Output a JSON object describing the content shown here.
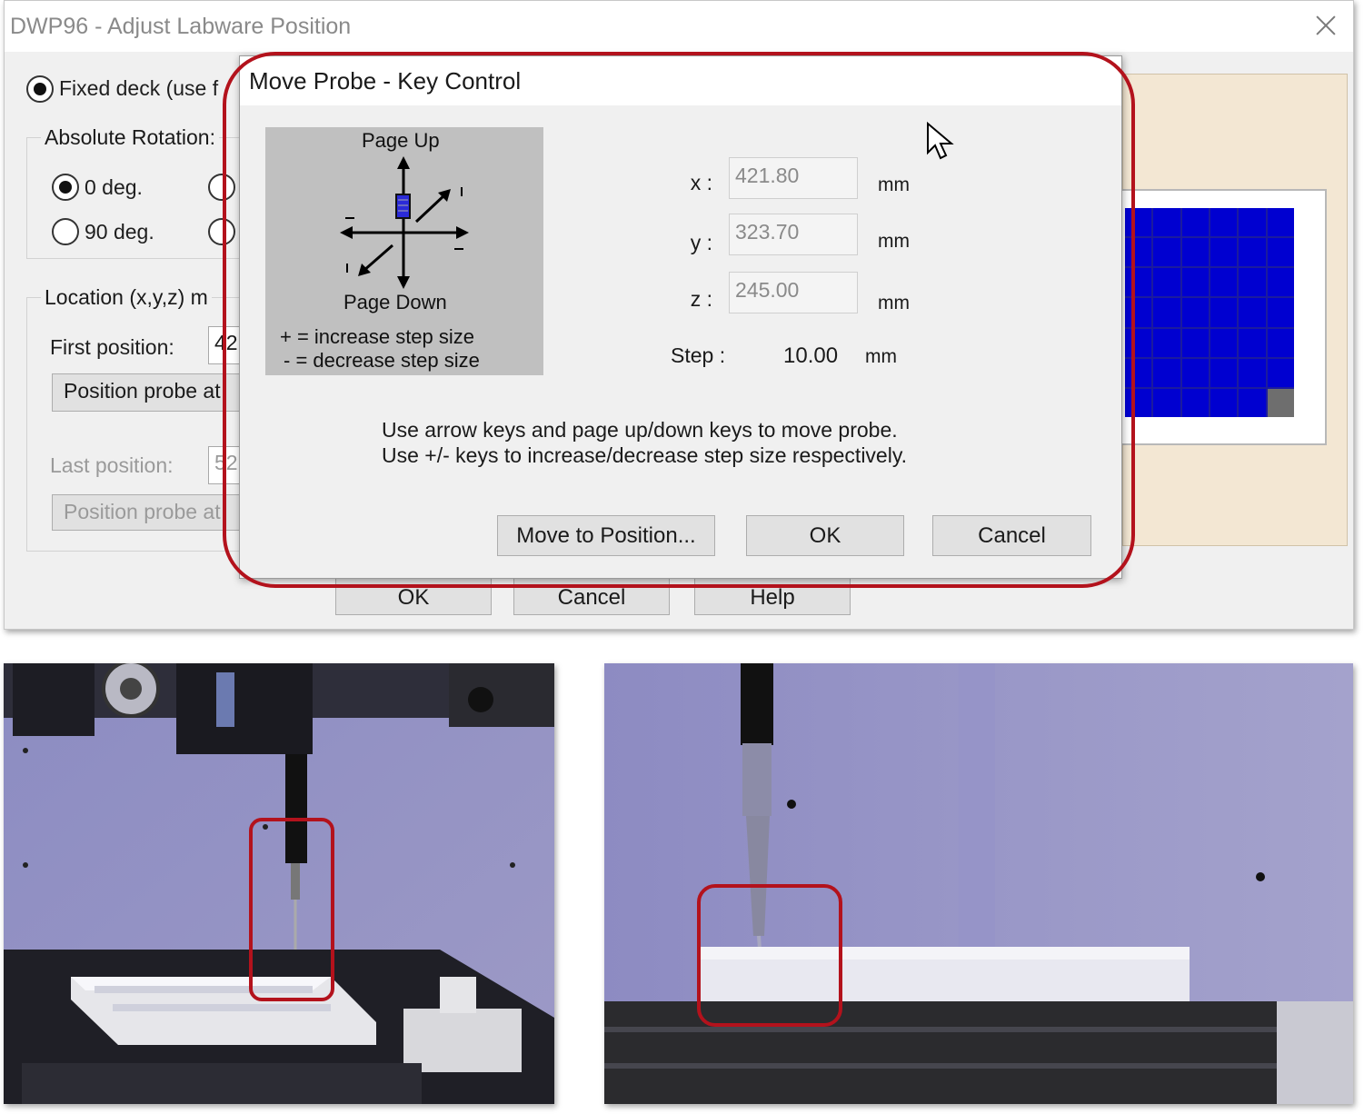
{
  "parent_window": {
    "title": "DWP96 - Adjust Labware Position",
    "fixed_deck_label": "Fixed deck (use f",
    "absolute_rotation_label": "Absolute Rotation:",
    "rotation_options": [
      "0 deg.",
      "90 deg."
    ],
    "location_label": "Location (x,y,z) m",
    "first_position_label": "First position:",
    "first_position_value": "42",
    "position_probe_button_1": "Position probe at",
    "last_position_label": "Last position:",
    "last_position_value": "52",
    "position_probe_button_2": "Position probe at",
    "buttons": {
      "ok": "OK",
      "cancel": "Cancel",
      "help": "Help"
    }
  },
  "dialog": {
    "title": "Move Probe - Key Control",
    "keypad": {
      "page_up": "Page Up",
      "page_down": "Page Down",
      "increase_hint": "+ = increase step size",
      "decrease_hint": "- = decrease step size"
    },
    "coordinates": [
      {
        "label": "x :",
        "value": "421.80",
        "unit": "mm"
      },
      {
        "label": "y :",
        "value": "323.70",
        "unit": "mm"
      },
      {
        "label": "z :",
        "value": "245.00",
        "unit": "mm"
      }
    ],
    "step": {
      "label": "Step :",
      "value": "10.00",
      "unit": "mm"
    },
    "instructions": [
      "Use arrow keys and page up/down keys to move probe.",
      "Use +/- keys to increase/decrease step size respectively."
    ],
    "buttons": {
      "move_to_position": "Move to Position...",
      "ok": "OK",
      "cancel": "Cancel"
    }
  },
  "colors": {
    "highlight": "#b3121c",
    "plate_well": "#0000d0",
    "plate_panel": "#f3e7d3",
    "photo_wall": "#8f8fbf"
  }
}
